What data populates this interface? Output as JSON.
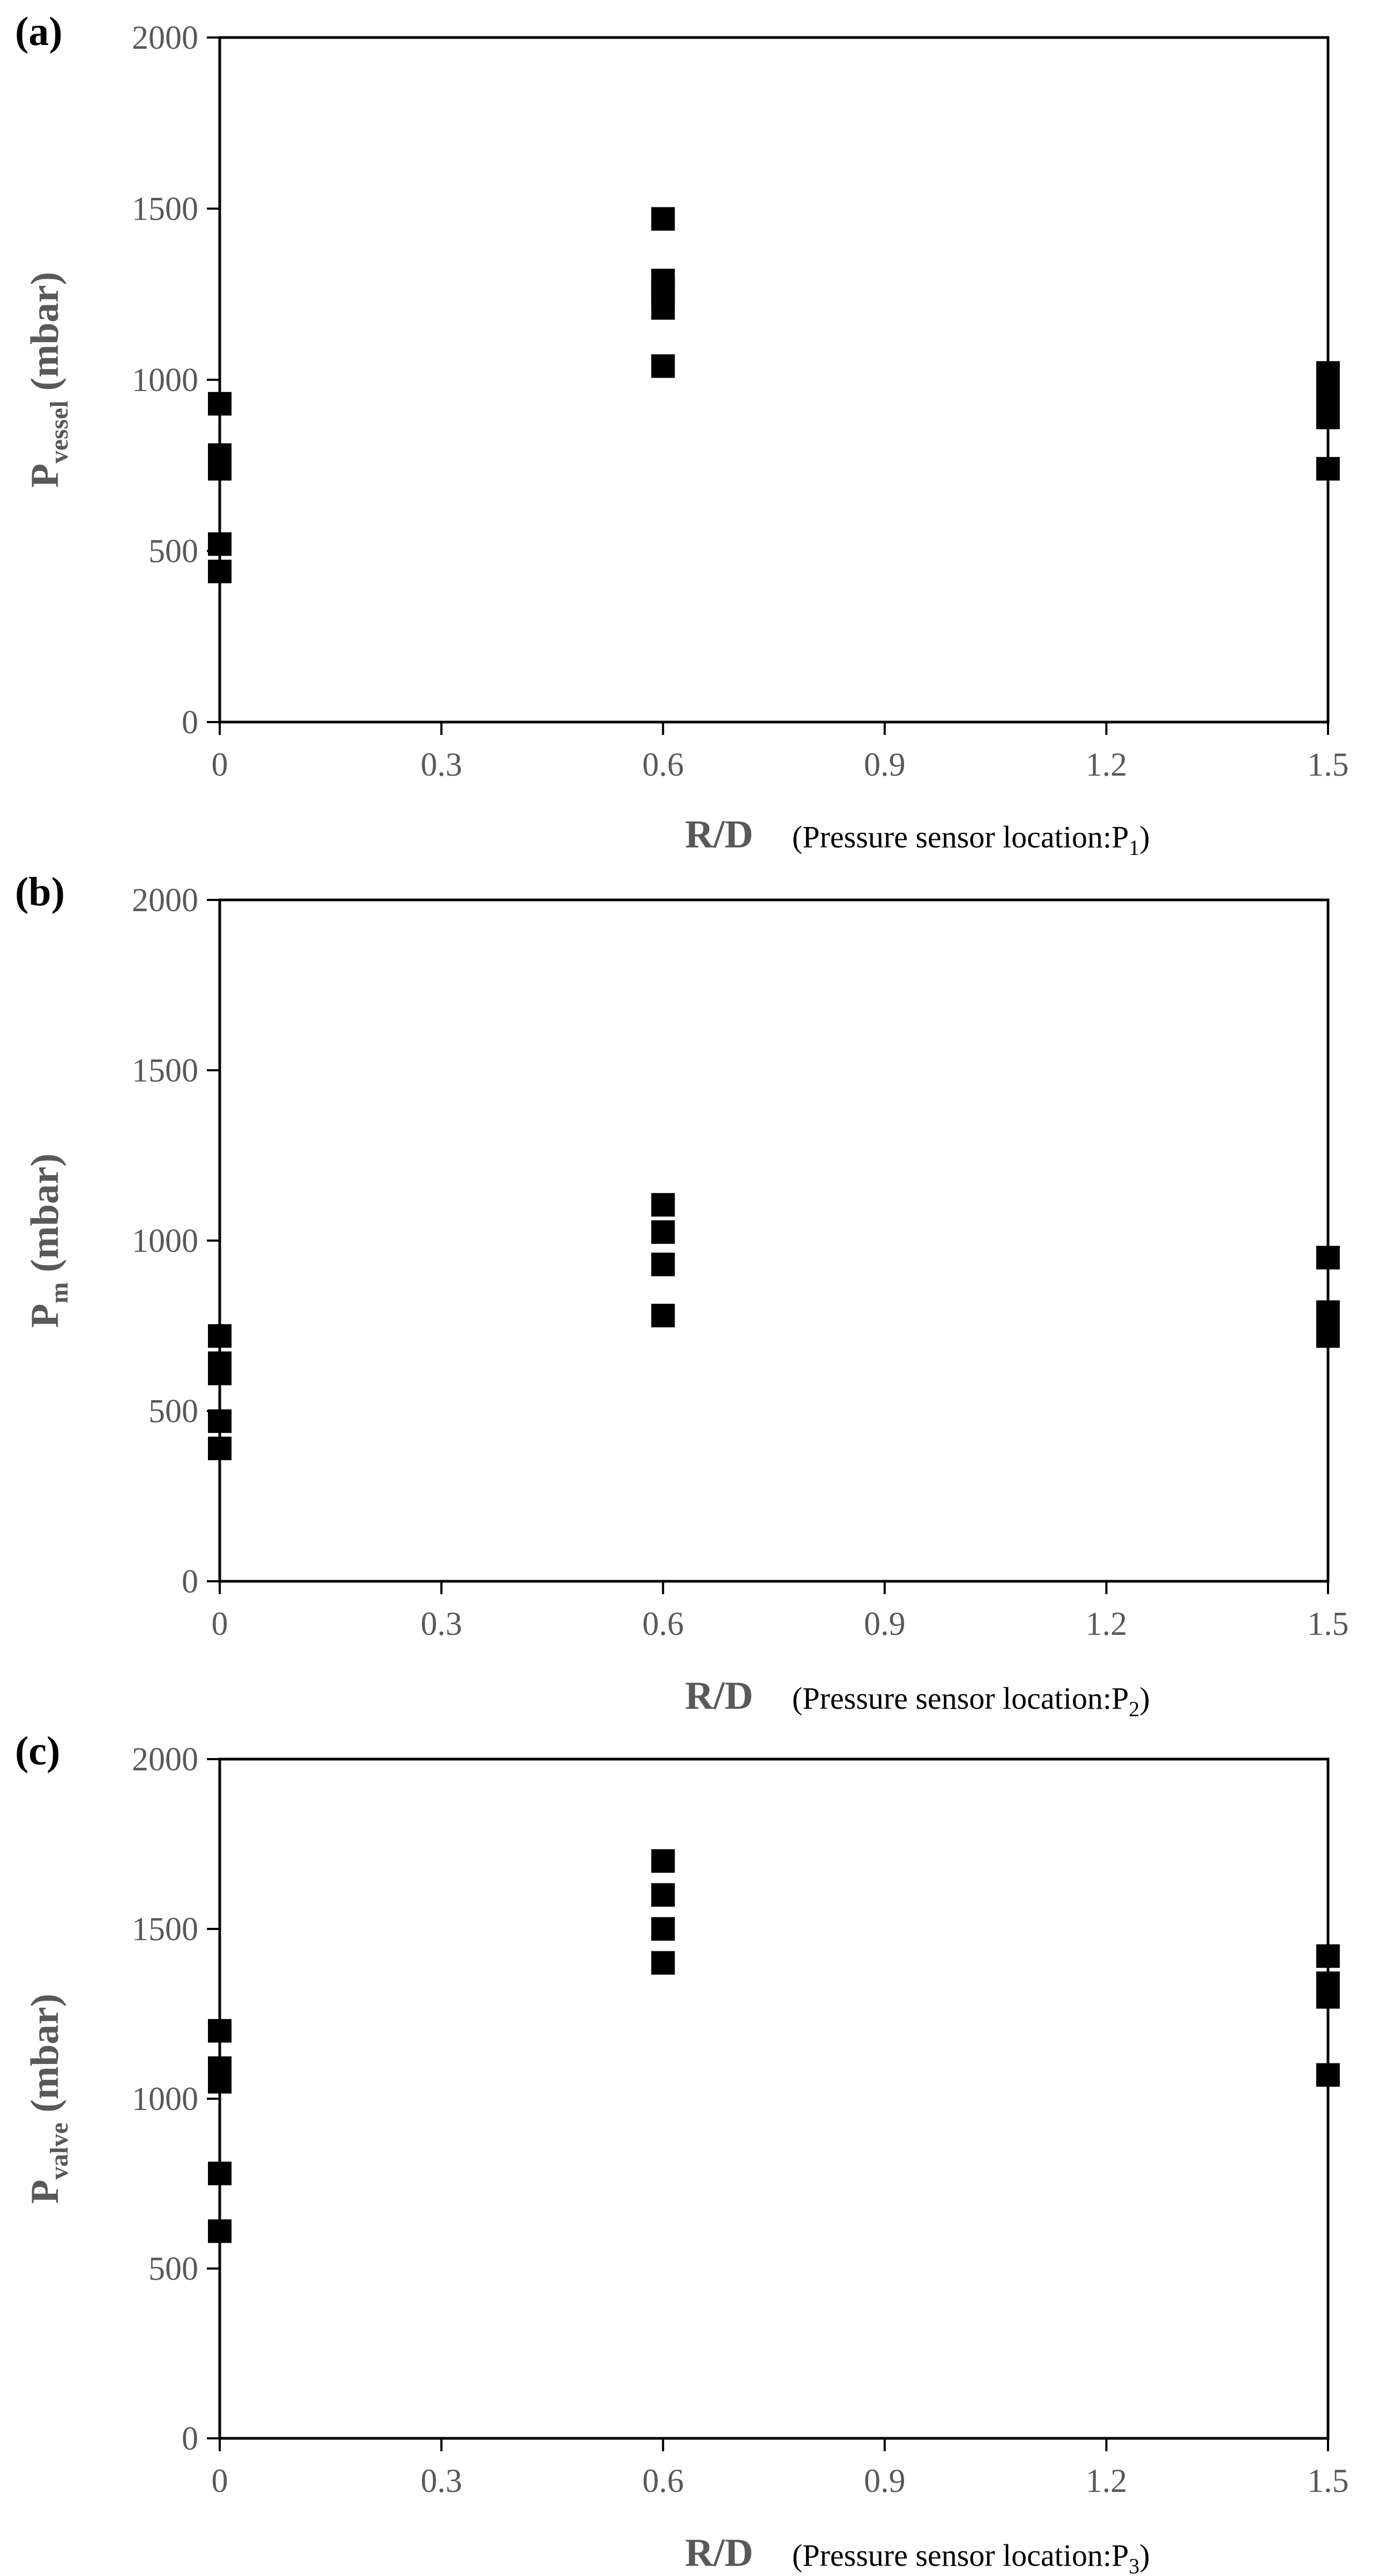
{
  "chart_data": [
    {
      "type": "scatter",
      "panel": "(a)",
      "ylabel": "P",
      "ylabel_sub": "vessel",
      "ylabel_unit": " (mbar)",
      "xlabel": "R/D",
      "xlabel_note": "(Pressure sensor location:P",
      "xlabel_note_sub": "1",
      "xlabel_note_end": ")",
      "xlim": [
        0,
        1.5
      ],
      "ylim": [
        0,
        2000
      ],
      "xticks": [
        0,
        0.3,
        0.6,
        0.9,
        1.2,
        1.5
      ],
      "xtick_labels": [
        "0",
        "0.3",
        "0.6",
        "0.9",
        "1.2",
        "1.5"
      ],
      "yticks": [
        0,
        500,
        1000,
        1500,
        2000
      ],
      "ytick_labels": [
        "0",
        "500",
        "1000",
        "1500",
        "2000"
      ],
      "grid": false,
      "marker": "square",
      "marker_color": "#000000",
      "series": [
        {
          "x": [
            0,
            0,
            0,
            0,
            0,
            0,
            0.6,
            0.6,
            0.6,
            0.6,
            0.6,
            0.6,
            1.5,
            1.5,
            1.5,
            1.5,
            1.5,
            1.5
          ],
          "y": [
            930,
            780,
            740,
            520,
            440,
            750,
            1470,
            1290,
            1250,
            1210,
            1040,
            1270,
            1020,
            980,
            930,
            890,
            740,
            1010
          ]
        }
      ]
    },
    {
      "type": "scatter",
      "panel": "(b)",
      "ylabel": "P",
      "ylabel_sub": "m",
      "ylabel_unit": " (mbar)",
      "xlabel": "R/D",
      "xlabel_note": "(Pressure sensor location:P",
      "xlabel_note_sub": "2",
      "xlabel_note_end": ")",
      "xlim": [
        0,
        1.5
      ],
      "ylim": [
        0,
        2000
      ],
      "xticks": [
        0,
        0.3,
        0.6,
        0.9,
        1.2,
        1.5
      ],
      "xtick_labels": [
        "0",
        "0.3",
        "0.6",
        "0.9",
        "1.2",
        "1.5"
      ],
      "yticks": [
        0,
        500,
        1000,
        1500,
        2000
      ],
      "ytick_labels": [
        "0",
        "500",
        "1000",
        "1500",
        "2000"
      ],
      "grid": false,
      "marker": "square",
      "marker_color": "#000000",
      "series": [
        {
          "x": [
            0,
            0,
            0,
            0,
            0,
            0.6,
            0.6,
            0.6,
            0.6,
            1.5,
            1.5,
            1.5,
            1.5
          ],
          "y": [
            720,
            640,
            610,
            470,
            390,
            1105,
            1025,
            930,
            780,
            950,
            790,
            750,
            720
          ]
        }
      ]
    },
    {
      "type": "scatter",
      "panel": "(c)",
      "ylabel": "P",
      "ylabel_sub": "valve",
      "ylabel_unit": " (mbar)",
      "xlabel": "R/D",
      "xlabel_note": "(Pressure sensor location:P",
      "xlabel_note_sub": "3",
      "xlabel_note_end": ")",
      "xlim": [
        0,
        1.5
      ],
      "ylim": [
        0,
        2000
      ],
      "xticks": [
        0,
        0.3,
        0.6,
        0.9,
        1.2,
        1.5
      ],
      "xtick_labels": [
        "0",
        "0.3",
        "0.6",
        "0.9",
        "1.2",
        "1.5"
      ],
      "yticks": [
        0,
        500,
        1000,
        1500,
        2000
      ],
      "ytick_labels": [
        "0",
        "500",
        "1000",
        "1500",
        "2000"
      ],
      "grid": false,
      "marker": "square",
      "marker_color": "#000000",
      "series": [
        {
          "x": [
            0,
            0,
            0,
            0,
            0,
            0.6,
            0.6,
            0.6,
            0.6,
            1.5,
            1.5,
            1.5,
            1.5
          ],
          "y": [
            1200,
            1090,
            1050,
            780,
            610,
            1700,
            1600,
            1500,
            1400,
            1420,
            1340,
            1300,
            1070
          ]
        }
      ]
    }
  ]
}
